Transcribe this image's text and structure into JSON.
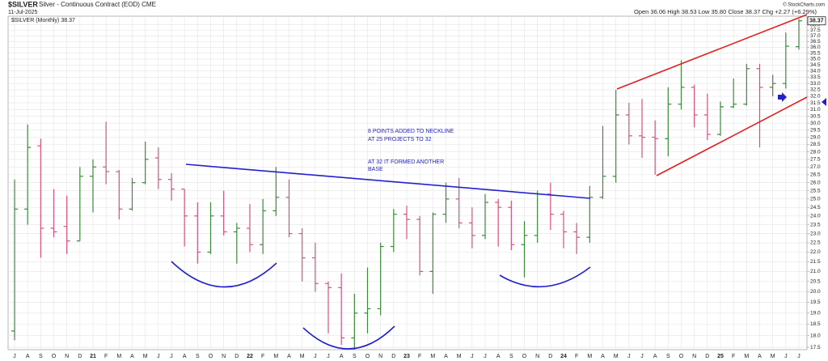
{
  "chart_data": {
    "type": "ohlc",
    "symbol": "$SILVER",
    "title": "Silver - Continuous Contract (EOD) CME",
    "date": "11-Jul-2025",
    "quote": "Open 36.06 High 38.53 Low 35.80 Close 38.37 Chg +2.27 (+6.29%)",
    "credit": "© StockCharts.com",
    "legend": "$SILVER (Monthly) 38.37",
    "annotations": [
      "8 POINTS ADDED TO NECKLINE",
      "AT 25 PROJECTS TO 32",
      "AT 32 IT FORMED ANOTHER",
      "BASE"
    ],
    "log_scale": true,
    "grid": true,
    "up_color": "#3a8a3a",
    "down_color": "#d94f7c",
    "categories": [
      "J",
      "A",
      "S",
      "O",
      "N",
      "D",
      "21",
      "F",
      "M",
      "A",
      "M",
      "J",
      "J",
      "A",
      "S",
      "O",
      "N",
      "D",
      "22",
      "F",
      "M",
      "A",
      "M",
      "J",
      "J",
      "A",
      "S",
      "O",
      "N",
      "D",
      "23",
      "F",
      "M",
      "A",
      "M",
      "J",
      "J",
      "A",
      "S",
      "O",
      "N",
      "D",
      "24",
      "F",
      "M",
      "A",
      "M",
      "J",
      "J",
      "A",
      "S",
      "O",
      "N",
      "D",
      "25",
      "F",
      "M",
      "A",
      "M",
      "J",
      "J"
    ],
    "open": [
      18.2,
      24.4,
      28.4,
      23.3,
      23.4,
      22.6,
      26.4,
      27.0,
      26.7,
      24.4,
      26.0,
      27.6,
      26.2,
      25.6,
      24.0,
      22.0,
      24.0,
      23.1,
      23.3,
      22.4,
      24.3,
      25.1,
      23.0,
      21.7,
      20.4,
      20.2,
      17.9,
      19.0,
      19.2,
      22.3,
      24.1,
      23.8,
      21.0,
      24.1,
      25.0,
      23.6,
      22.9,
      24.8,
      24.5,
      22.4,
      22.9,
      25.3,
      24.1,
      23.1,
      22.8,
      25.1,
      26.4,
      30.6,
      29.1,
      29.0,
      28.9,
      31.4,
      32.7,
      30.6,
      29.2,
      31.2,
      31.4,
      34.2,
      32.7,
      33.0,
      36.06
    ],
    "high": [
      26.2,
      29.9,
      28.9,
      25.6,
      25.2,
      27.0,
      27.5,
      30.1,
      26.8,
      26.3,
      28.7,
      28.3,
      26.6,
      25.6,
      24.8,
      24.8,
      25.5,
      23.6,
      24.7,
      25.0,
      27.0,
      26.2,
      23.3,
      22.5,
      20.5,
      20.9,
      19.9,
      21.2,
      22.5,
      24.4,
      24.6,
      24.0,
      24.2,
      26.0,
      26.3,
      24.5,
      25.3,
      25.0,
      24.9,
      23.7,
      25.5,
      26.0,
      24.3,
      23.6,
      25.8,
      29.8,
      32.5,
      31.5,
      31.8,
      30.2,
      32.7,
      34.9,
      32.9,
      32.2,
      31.6,
      33.4,
      34.6,
      34.6,
      33.7,
      37.3,
      38.53
    ],
    "low": [
      17.8,
      23.5,
      21.7,
      22.8,
      21.9,
      22.6,
      24.2,
      25.9,
      23.8,
      24.3,
      25.9,
      25.6,
      24.9,
      22.3,
      21.4,
      21.9,
      22.9,
      21.4,
      22.0,
      21.9,
      24.0,
      22.8,
      20.5,
      20.0,
      18.1,
      17.6,
      17.4,
      18.1,
      18.9,
      22.0,
      22.7,
      20.8,
      19.9,
      23.6,
      23.3,
      22.2,
      22.7,
      22.3,
      22.1,
      20.7,
      22.5,
      23.2,
      22.2,
      21.9,
      22.5,
      25.0,
      26.0,
      28.5,
      27.6,
      26.5,
      27.7,
      31.0,
      29.7,
      28.8,
      29.1,
      31.1,
      31.3,
      28.3,
      32.0,
      32.6,
      35.8
    ],
    "close": [
      24.4,
      28.3,
      23.3,
      23.1,
      22.6,
      26.4,
      27.0,
      26.7,
      24.4,
      26.0,
      27.5,
      26.2,
      25.6,
      24.0,
      22.0,
      24.0,
      23.1,
      23.3,
      22.4,
      24.3,
      25.1,
      23.0,
      21.7,
      20.4,
      20.2,
      17.9,
      19.0,
      19.2,
      22.3,
      24.1,
      23.8,
      21.0,
      24.1,
      25.0,
      23.6,
      22.9,
      24.8,
      24.5,
      22.4,
      22.9,
      25.3,
      24.1,
      23.1,
      22.8,
      25.1,
      26.4,
      30.6,
      29.1,
      29.0,
      28.9,
      31.4,
      32.7,
      30.6,
      29.2,
      31.2,
      31.4,
      34.2,
      32.7,
      33.0,
      36.1,
      38.37
    ],
    "ylim": [
      17.4,
      38.8
    ],
    "yticks": [
      17.5,
      {
        "value": 18,
        "label": "18.0"
      },
      18.5,
      {
        "value": 19,
        "label": "19.0"
      },
      19.5,
      {
        "value": 20,
        "label": "20.0"
      },
      20.5,
      {
        "value": 21,
        "label": "21.0"
      },
      21.5,
      {
        "value": 22,
        "label": "22.0"
      },
      22.5,
      {
        "value": 23,
        "label": "23.0"
      },
      23.5,
      {
        "value": 24,
        "label": "24.0"
      },
      24.5,
      {
        "value": 25,
        "label": "25.0"
      },
      25.5,
      {
        "value": 26,
        "label": "26.0"
      },
      26.5,
      {
        "value": 27,
        "label": "27.0"
      },
      27.5,
      {
        "value": 28,
        "label": "28.0"
      },
      28.5,
      {
        "value": 29,
        "label": "29.0"
      },
      29.5,
      {
        "value": 30,
        "label": "30.0"
      },
      30.5,
      {
        "value": 31,
        "label": "31.0"
      },
      31.5,
      {
        "value": 32,
        "label": "32.0"
      },
      32.5,
      {
        "value": 33,
        "label": "33.0"
      },
      33.5,
      {
        "value": 34,
        "label": "34.0"
      },
      34.5,
      {
        "value": 35,
        "label": "35.0"
      },
      35.5,
      {
        "value": 36,
        "label": "36.0"
      },
      36.5,
      {
        "value": 37,
        "label": "37.0"
      },
      37.5,
      {
        "value": 38,
        "label": "38.0"
      }
    ]
  }
}
